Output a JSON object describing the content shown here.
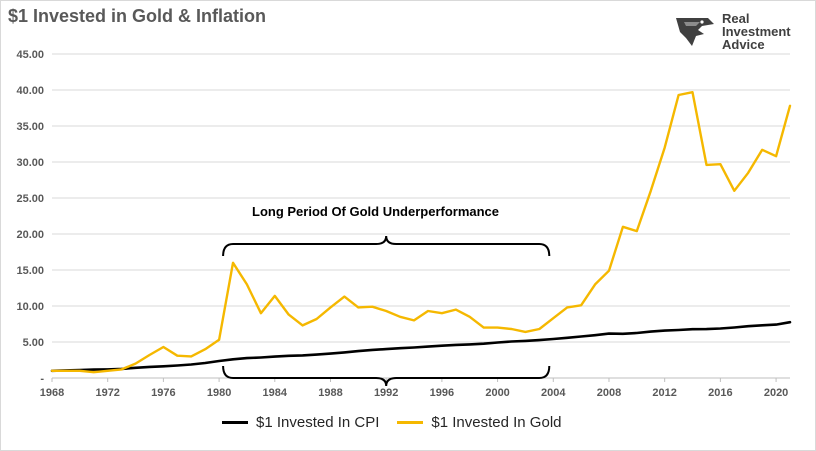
{
  "chart_data": {
    "type": "line",
    "title": "$1 Invested in Gold & Inflation",
    "xlabel": "",
    "ylabel": "",
    "ylim": [
      0,
      45
    ],
    "xlim": [
      1968,
      2021
    ],
    "y_ticks": [
      "-",
      "5.00",
      "10.00",
      "15.00",
      "20.00",
      "25.00",
      "30.00",
      "35.00",
      "40.00",
      "45.00"
    ],
    "y_tick_values": [
      0,
      5,
      10,
      15,
      20,
      25,
      30,
      35,
      40,
      45
    ],
    "x_ticks": [
      "1968",
      "1972",
      "1976",
      "1980",
      "1984",
      "1988",
      "1992",
      "1996",
      "2000",
      "2004",
      "2008",
      "2012",
      "2016",
      "2020"
    ],
    "x_tick_values": [
      1968,
      1972,
      1976,
      1980,
      1984,
      1988,
      1992,
      1996,
      2000,
      2004,
      2008,
      2012,
      2016,
      2020
    ],
    "grid": true,
    "legend_placement": "bottom",
    "annotation": "Long Period Of Gold Underperformance",
    "bracket_range": [
      1980,
      2004
    ],
    "series": [
      {
        "name": "$1 Invested In CPI",
        "color": "#000000",
        "x": [
          1968,
          1969,
          1970,
          1971,
          1972,
          1973,
          1974,
          1975,
          1976,
          1977,
          1978,
          1979,
          1980,
          1981,
          1982,
          1983,
          1984,
          1985,
          1986,
          1987,
          1988,
          1989,
          1990,
          1991,
          1992,
          1993,
          1994,
          1995,
          1996,
          1997,
          1998,
          1999,
          2000,
          2001,
          2002,
          2003,
          2004,
          2005,
          2006,
          2007,
          2008,
          2009,
          2010,
          2011,
          2012,
          2013,
          2014,
          2015,
          2016,
          2017,
          2018,
          2019,
          2020,
          2021
        ],
        "values": [
          1.0,
          1.05,
          1.11,
          1.16,
          1.2,
          1.27,
          1.41,
          1.54,
          1.63,
          1.74,
          1.87,
          2.08,
          2.36,
          2.6,
          2.76,
          2.85,
          2.97,
          3.08,
          3.14,
          3.25,
          3.39,
          3.55,
          3.74,
          3.9,
          4.02,
          4.14,
          4.24,
          4.36,
          4.49,
          4.6,
          4.67,
          4.77,
          4.93,
          5.07,
          5.15,
          5.27,
          5.41,
          5.59,
          5.77,
          5.94,
          6.16,
          6.14,
          6.25,
          6.44,
          6.58,
          6.67,
          6.78,
          6.79,
          6.87,
          7.02,
          7.19,
          7.32,
          7.41,
          7.75
        ]
      },
      {
        "name": "$1 Invested In Gold",
        "color": "#f5b800",
        "x": [
          1968,
          1969,
          1970,
          1971,
          1972,
          1973,
          1974,
          1975,
          1976,
          1977,
          1978,
          1979,
          1980,
          1981,
          1982,
          1983,
          1984,
          1985,
          1986,
          1987,
          1988,
          1989,
          1990,
          1991,
          1992,
          1993,
          1994,
          1995,
          1996,
          1997,
          1998,
          1999,
          2000,
          2001,
          2002,
          2003,
          2004,
          2005,
          2006,
          2007,
          2008,
          2009,
          2010,
          2011,
          2012,
          2013,
          2014,
          2015,
          2016,
          2017,
          2018,
          2019,
          2020,
          2021
        ],
        "values": [
          1.0,
          1.0,
          1.0,
          0.8,
          1.0,
          1.2,
          2.0,
          3.2,
          4.3,
          3.1,
          3.0,
          4.0,
          5.3,
          16.0,
          13.0,
          9.0,
          11.4,
          8.8,
          7.3,
          8.2,
          9.8,
          11.3,
          9.8,
          9.9,
          9.3,
          8.5,
          8.0,
          9.3,
          9.0,
          9.5,
          8.5,
          7.0,
          7.0,
          6.8,
          6.4,
          6.8,
          8.3,
          9.8,
          10.1,
          13.0,
          14.9,
          21.0,
          20.4,
          26.0,
          32.0,
          39.3,
          39.7,
          29.6,
          29.7,
          26.0,
          28.5,
          31.7,
          30.8,
          37.8
        ]
      }
    ]
  },
  "logo": {
    "line1": "Real",
    "line2": "Investment",
    "line3": "Advice"
  }
}
